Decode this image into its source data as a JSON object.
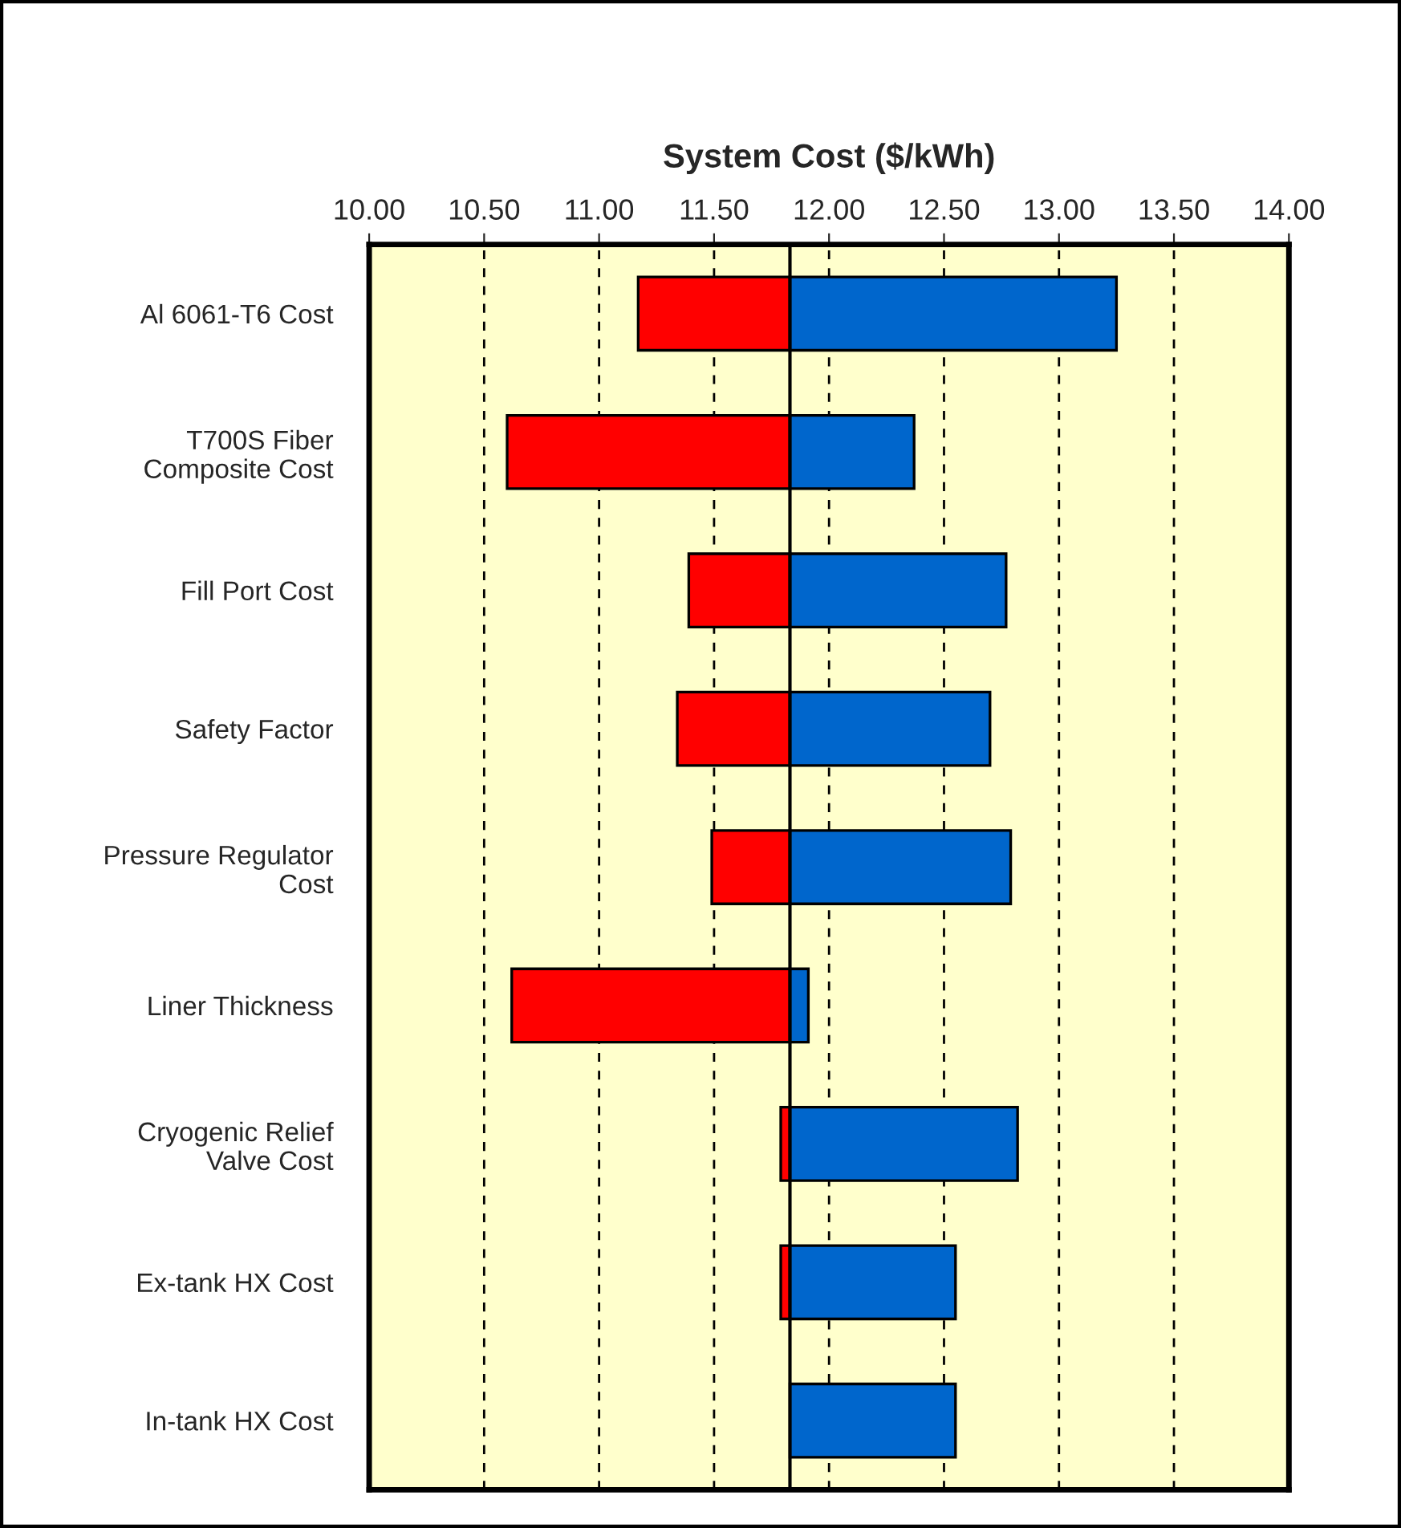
{
  "chart_data": {
    "type": "bar",
    "orientation": "horizontal",
    "xlabel": "System Cost ($/kWh)",
    "categories": [
      "Al 6061-T6 Cost",
      "T700S Fiber\nComposite Cost",
      "Fill Port Cost",
      "Safety Factor",
      "Pressure Regulator\nCost",
      "Liner Thickness",
      "Cryogenic Relief\nValve Cost",
      "Ex-tank HX Cost",
      "In-tank HX Cost"
    ],
    "series": [
      {
        "color": "#ff0000",
        "base": [
          11.17,
          10.6,
          11.39,
          11.34,
          11.49,
          10.62,
          11.79,
          11.79,
          null
        ],
        "values": [
          0.66,
          1.23,
          0.44,
          0.49,
          0.34,
          1.21,
          0.04,
          0.04,
          null
        ]
      },
      {
        "color": "#0066cc",
        "base": [
          11.83,
          11.83,
          11.83,
          11.83,
          11.83,
          11.83,
          11.83,
          11.83,
          11.83
        ],
        "values": [
          1.42,
          0.54,
          0.94,
          0.87,
          0.96,
          0.08,
          0.99,
          0.72,
          0.72
        ]
      }
    ],
    "xlim": [
      10,
      14
    ],
    "xticks": [
      {
        "value": 10,
        "label": "10.00"
      },
      {
        "value": 10.5,
        "label": "10.50"
      },
      {
        "value": 11,
        "label": "11.00"
      },
      {
        "value": 11.5,
        "label": "11.50"
      },
      {
        "value": 12,
        "label": "12.00"
      },
      {
        "value": 12.5,
        "label": "12.50"
      },
      {
        "value": 13,
        "label": "13.00"
      },
      {
        "value": 13.5,
        "label": "13.50"
      },
      {
        "value": 14,
        "label": "14.00"
      }
    ],
    "ref_lines": [
      {
        "axis": "x",
        "value": 11.83,
        "color": "#000000"
      }
    ],
    "grid": "x",
    "line_style": "dashed"
  }
}
